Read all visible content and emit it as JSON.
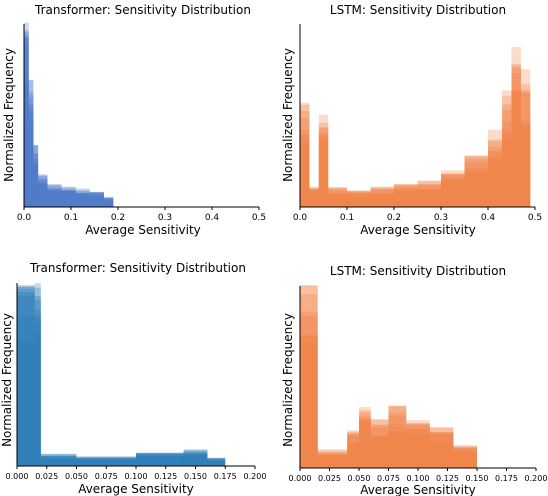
{
  "chart_data": [
    {
      "type": "histogram",
      "title": "Transformer: Sensitivity Distribution",
      "xlabel": "Average Sensitivity",
      "ylabel": "Normalized Frequency",
      "xlim": [
        0,
        0.5
      ],
      "xticks": [
        "0.0",
        "0.1",
        "0.2",
        "0.3",
        "0.4",
        "0.5"
      ],
      "color": "#4472c4",
      "overlay_series_shown": 8,
      "values": [
        [
          0.0,
          0.01,
          1.0
        ],
        [
          0.01,
          0.02,
          0.62
        ],
        [
          0.02,
          0.03,
          0.3
        ],
        [
          0.03,
          0.05,
          0.16
        ],
        [
          0.05,
          0.08,
          0.12
        ],
        [
          0.08,
          0.11,
          0.1
        ],
        [
          0.11,
          0.14,
          0.09
        ],
        [
          0.14,
          0.17,
          0.08
        ],
        [
          0.17,
          0.19,
          0.05
        ]
      ]
    },
    {
      "type": "histogram",
      "title": "LSTM: Sensitivity Distribution",
      "xlabel": "Average Sensitivity",
      "ylabel": "Normalized Frequency",
      "xlim": [
        0,
        0.5
      ],
      "xticks": [
        "0.0",
        "0.1",
        "0.2",
        "0.3",
        "0.4",
        "0.5"
      ],
      "color": "#ef7f3f",
      "overlay_series_shown": 8,
      "values": [
        [
          0.0,
          0.02,
          0.5
        ],
        [
          0.02,
          0.04,
          0.1
        ],
        [
          0.04,
          0.06,
          0.45
        ],
        [
          0.06,
          0.1,
          0.1
        ],
        [
          0.1,
          0.15,
          0.08
        ],
        [
          0.15,
          0.2,
          0.1
        ],
        [
          0.2,
          0.25,
          0.11
        ],
        [
          0.25,
          0.3,
          0.13
        ],
        [
          0.3,
          0.35,
          0.18
        ],
        [
          0.35,
          0.4,
          0.25
        ],
        [
          0.4,
          0.43,
          0.38
        ],
        [
          0.43,
          0.45,
          0.55
        ],
        [
          0.45,
          0.47,
          0.8
        ],
        [
          0.47,
          0.49,
          0.65
        ]
      ]
    },
    {
      "type": "histogram",
      "title": "Transformer: Sensitivity Distribution",
      "xlabel": "Average Sensitivity",
      "ylabel": "Normalized Frequency",
      "xlim": [
        0,
        0.2
      ],
      "xticks": [
        "0.000",
        "0.025",
        "0.050",
        "0.075",
        "0.100",
        "0.125",
        "0.150",
        "0.175",
        "0.200"
      ],
      "color": "#1f77b4",
      "overlay_series_shown": 8,
      "values": [
        [
          0.0,
          0.015,
          1.0
        ],
        [
          0.015,
          0.02,
          0.9
        ],
        [
          0.02,
          0.05,
          0.06
        ],
        [
          0.05,
          0.1,
          0.05
        ],
        [
          0.1,
          0.14,
          0.07
        ],
        [
          0.14,
          0.16,
          0.08
        ],
        [
          0.16,
          0.175,
          0.04
        ]
      ]
    },
    {
      "type": "histogram",
      "title": "LSTM: Sensitivity Distribution",
      "xlabel": "Average Sensitivity",
      "ylabel": "Normalized Frequency",
      "xlim": [
        0,
        0.2
      ],
      "xticks": [
        "0.000",
        "0.025",
        "0.050",
        "0.075",
        "0.100",
        "0.125",
        "0.150",
        "0.175",
        "0.200"
      ],
      "color": "#ef7f3f",
      "overlay_series_shown": 8,
      "values": [
        [
          0.0,
          0.015,
          1.0
        ],
        [
          0.015,
          0.04,
          0.1
        ],
        [
          0.04,
          0.05,
          0.2
        ],
        [
          0.05,
          0.06,
          0.35
        ],
        [
          0.06,
          0.075,
          0.25
        ],
        [
          0.075,
          0.09,
          0.3
        ],
        [
          0.09,
          0.11,
          0.25
        ],
        [
          0.11,
          0.13,
          0.2
        ],
        [
          0.13,
          0.15,
          0.12
        ]
      ]
    }
  ]
}
